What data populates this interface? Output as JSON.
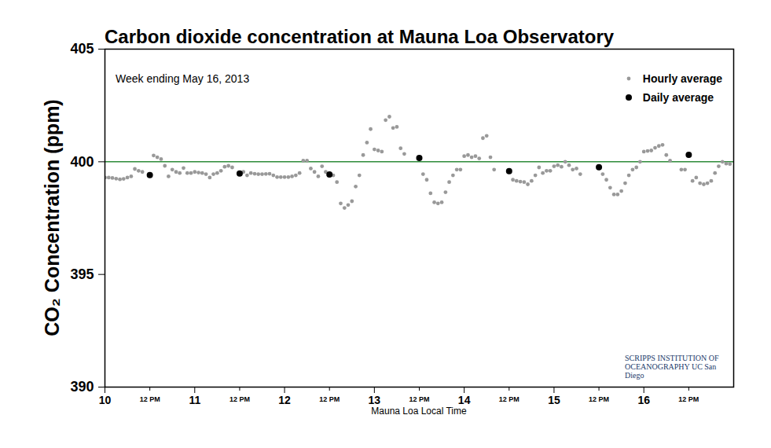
{
  "chart_data": {
    "type": "scatter",
    "title": "Carbon dioxide concentration at Mauna Loa Observatory",
    "subtitle": "Week ending May 16, 2013",
    "x_label": "Mauna Loa Local Time",
    "y_label": "CO₂ Concentration (ppm)",
    "annotations": [
      "SCRIPPS INSTITUTION OF OCEANOGRAPHY UC San Diego"
    ],
    "xlim": [
      10,
      17
    ],
    "xticks": [
      10,
      {
        "value": 10.5,
        "label": "12 PM"
      },
      11,
      {
        "value": 11.5,
        "label": "12 PM"
      },
      12,
      {
        "value": 12.5,
        "label": "12 PM"
      },
      13,
      {
        "value": 13.5,
        "label": "12 PM"
      },
      14,
      {
        "value": 14.5,
        "label": "12 PM"
      },
      15,
      {
        "value": 15.5,
        "label": "12 PM"
      },
      16,
      {
        "value": 16.5,
        "label": "12 PM"
      }
    ],
    "ylim": [
      390,
      405
    ],
    "yticks": [
      390,
      395,
      400,
      405
    ],
    "reference_line": {
      "value": 400,
      "color": "#2e8b3a"
    },
    "legend": "top-right",
    "grid": false,
    "series": [
      {
        "name": "Hourly average",
        "color": "#999999",
        "marker": "circle",
        "x": [
          10.0,
          10.042,
          10.083,
          10.125,
          10.167,
          10.208,
          10.25,
          10.292,
          10.333,
          10.375,
          10.417,
          10.542,
          10.583,
          10.625,
          10.667,
          10.708,
          10.75,
          10.792,
          10.833,
          10.875,
          10.917,
          10.958,
          11.0,
          11.042,
          11.083,
          11.125,
          11.167,
          11.208,
          11.25,
          11.292,
          11.333,
          11.375,
          11.417,
          11.542,
          11.583,
          11.625,
          11.667,
          11.708,
          11.75,
          11.792,
          11.833,
          11.875,
          11.917,
          11.958,
          12.0,
          12.042,
          12.083,
          12.125,
          12.167,
          12.208,
          12.25,
          12.292,
          12.333,
          12.375,
          12.417,
          12.458,
          12.542,
          12.583,
          12.625,
          12.667,
          12.708,
          12.75,
          12.792,
          12.833,
          12.875,
          12.917,
          12.958,
          13.0,
          13.042,
          13.083,
          13.125,
          13.167,
          13.208,
          13.25,
          13.292,
          13.333,
          13.542,
          13.583,
          13.625,
          13.667,
          13.708,
          13.75,
          13.792,
          13.833,
          13.875,
          13.917,
          13.958,
          14.0,
          14.042,
          14.083,
          14.125,
          14.167,
          14.208,
          14.25,
          14.292,
          14.333,
          14.542,
          14.583,
          14.625,
          14.667,
          14.708,
          14.75,
          14.792,
          14.833,
          14.875,
          14.917,
          14.958,
          15.0,
          15.042,
          15.083,
          15.125,
          15.167,
          15.208,
          15.25,
          15.292,
          15.542,
          15.583,
          15.625,
          15.667,
          15.708,
          15.75,
          15.792,
          15.833,
          15.875,
          15.917,
          15.958,
          16.0,
          16.042,
          16.083,
          16.125,
          16.167,
          16.208,
          16.25,
          16.292,
          16.417,
          16.458,
          16.542,
          16.583,
          16.625,
          16.667,
          16.708,
          16.75,
          16.792,
          16.833,
          16.875,
          16.917,
          16.958
        ],
        "values": [
          399.3,
          399.3,
          399.28,
          399.25,
          399.22,
          399.24,
          399.3,
          399.35,
          399.68,
          399.6,
          399.55,
          400.28,
          400.2,
          400.12,
          399.82,
          399.35,
          399.65,
          399.55,
          399.5,
          399.72,
          399.5,
          399.5,
          399.55,
          399.52,
          399.5,
          399.45,
          399.3,
          399.45,
          399.5,
          399.6,
          399.78,
          399.82,
          399.75,
          399.55,
          399.4,
          399.5,
          399.47,
          399.45,
          399.45,
          399.46,
          399.47,
          399.4,
          399.32,
          399.32,
          399.32,
          399.32,
          399.35,
          399.4,
          399.5,
          400.05,
          400.05,
          399.7,
          399.55,
          399.35,
          399.8,
          399.55,
          399.4,
          399.1,
          398.15,
          397.95,
          398.08,
          398.25,
          398.9,
          399.4,
          400.3,
          400.85,
          401.45,
          400.55,
          400.5,
          400.45,
          401.85,
          402.0,
          401.5,
          401.55,
          400.6,
          400.35,
          399.45,
          399.2,
          398.6,
          398.2,
          398.15,
          398.2,
          398.65,
          399.1,
          399.4,
          399.65,
          399.65,
          400.25,
          400.3,
          400.2,
          400.25,
          400.15,
          401.05,
          401.15,
          400.2,
          399.65,
          399.2,
          399.15,
          399.12,
          399.1,
          399.0,
          399.15,
          399.4,
          399.75,
          399.5,
          399.6,
          399.6,
          399.8,
          399.85,
          399.78,
          400.0,
          399.85,
          399.65,
          399.7,
          399.45,
          399.45,
          399.2,
          398.85,
          398.55,
          398.55,
          398.7,
          399.05,
          399.4,
          399.65,
          399.75,
          400.0,
          400.45,
          400.48,
          400.5,
          400.62,
          400.7,
          400.75,
          400.3,
          400.05,
          399.65,
          399.65,
          399.15,
          399.3,
          399.05,
          399.0,
          399.05,
          399.15,
          399.5,
          399.8,
          400.0,
          399.92,
          399.9
        ]
      },
      {
        "name": "Daily average",
        "color": "#000000",
        "marker": "circle",
        "x": [
          10.5,
          11.5,
          12.5,
          13.5,
          14.5,
          15.5,
          16.5
        ],
        "values": [
          399.41,
          399.48,
          399.44,
          400.17,
          399.58,
          399.76,
          400.31
        ]
      }
    ]
  }
}
